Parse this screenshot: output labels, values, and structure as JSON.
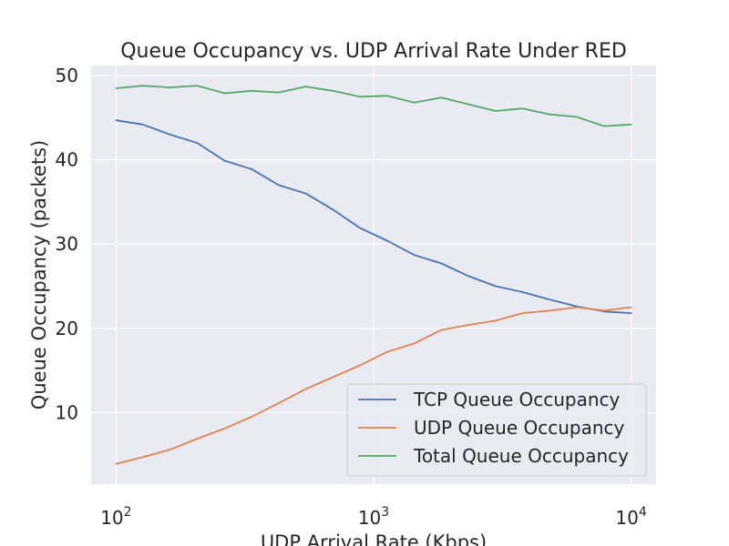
{
  "chart_data": {
    "type": "line",
    "title": "Queue Occupancy vs. UDP Arrival Rate Under RED",
    "xlabel": "UDP Arrival Rate (Kbps)",
    "ylabel": "Queue Occupancy (packets)",
    "xscale": "log",
    "xlim": [
      80,
      12500
    ],
    "ylim": [
      1.5,
      51.2
    ],
    "xticks": [
      {
        "value": 100,
        "base": "10",
        "exp": "2"
      },
      {
        "value": 1000,
        "base": "10",
        "exp": "3"
      },
      {
        "value": 10000,
        "base": "10",
        "exp": "4"
      }
    ],
    "yticks": [
      10,
      20,
      30,
      40,
      50
    ],
    "grid": true,
    "legend_position": "lower-right",
    "x": [
      100,
      127,
      162,
      207,
      264,
      336,
      428,
      546,
      695,
      886,
      1129,
      1438,
      1833,
      2336,
      2976,
      3793,
      4833,
      6158,
      7848,
      10000
    ],
    "series": [
      {
        "name": "TCP Queue Occupancy",
        "color": "#4c72b0",
        "values": [
          44.7,
          44.2,
          43.0,
          42.0,
          39.9,
          38.9,
          37.0,
          36.0,
          34.1,
          31.9,
          30.4,
          28.7,
          27.7,
          26.2,
          25.0,
          24.3,
          23.4,
          22.6,
          22.0,
          21.8
        ]
      },
      {
        "name": "UDP Queue Occupancy",
        "color": "#dd8452",
        "values": [
          3.9,
          4.7,
          5.6,
          6.9,
          8.1,
          9.5,
          11.1,
          12.8,
          14.2,
          15.6,
          17.2,
          18.2,
          19.8,
          20.4,
          20.9,
          21.8,
          22.1,
          22.5,
          22.1,
          22.5
        ]
      },
      {
        "name": "Total Queue Occupancy",
        "color": "#55a868",
        "values": [
          48.5,
          48.8,
          48.6,
          48.8,
          47.9,
          48.2,
          48.0,
          48.7,
          48.2,
          47.5,
          47.6,
          46.8,
          47.4,
          46.6,
          45.8,
          46.1,
          45.4,
          45.1,
          44.0,
          44.2
        ]
      }
    ]
  }
}
